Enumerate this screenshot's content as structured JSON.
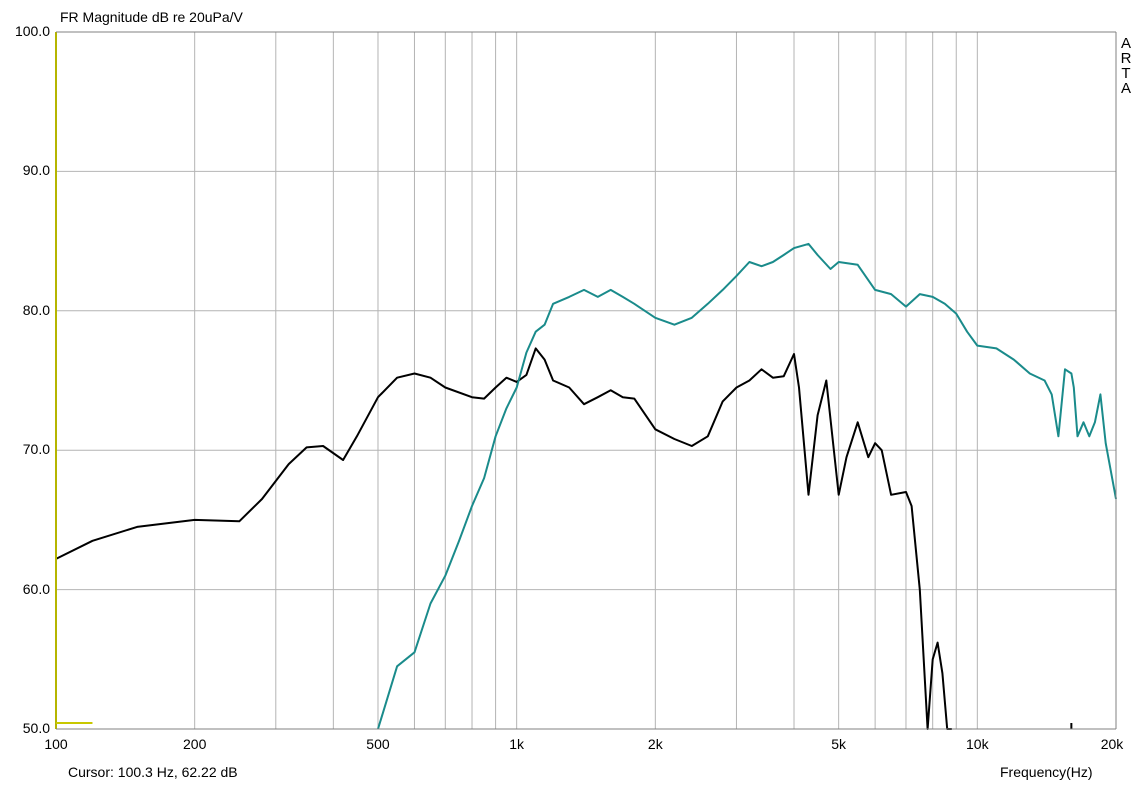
{
  "app": {
    "brand_letters": [
      "A",
      "R",
      "T",
      "A"
    ]
  },
  "status": {
    "cursor_text": "Cursor:   100.3 Hz, 62.22 dB"
  },
  "chart_data": {
    "type": "line",
    "title": "FR Magnitude dB re 20uPa/V",
    "xlabel": "Frequency(Hz)",
    "ylabel": "",
    "xscale": "log",
    "xlim": [
      100,
      20000
    ],
    "ylim": [
      50,
      100
    ],
    "grid": true,
    "x_ticks": [
      {
        "value": 100,
        "label": "100"
      },
      {
        "value": 200,
        "label": "200"
      },
      {
        "value": 500,
        "label": "500"
      },
      {
        "value": 1000,
        "label": "1k"
      },
      {
        "value": 2000,
        "label": "2k"
      },
      {
        "value": 5000,
        "label": "5k"
      },
      {
        "value": 10000,
        "label": "10k"
      },
      {
        "value": 20000,
        "label": "20k"
      }
    ],
    "y_ticks": [
      {
        "value": 100,
        "label": "100.0"
      },
      {
        "value": 90,
        "label": "90.0"
      },
      {
        "value": 80,
        "label": "80.0"
      },
      {
        "value": 70,
        "label": "70.0"
      },
      {
        "value": 60,
        "label": "60.0"
      },
      {
        "value": 50,
        "label": "50.0"
      }
    ],
    "colors": {
      "axis_left": "#b5b500",
      "grid": "#b4b4b4",
      "black_series": "#000000",
      "teal_series": "#1a8b8b",
      "cursor_marker": "#c8c800"
    },
    "series": [
      {
        "color": "#000000",
        "x": [
          100,
          120,
          150,
          200,
          250,
          280,
          320,
          350,
          380,
          420,
          450,
          500,
          550,
          600,
          650,
          700,
          800,
          850,
          900,
          950,
          1000,
          1050,
          1100,
          1150,
          1200,
          1300,
          1400,
          1500,
          1600,
          1700,
          1800,
          2000,
          2200,
          2400,
          2600,
          2800,
          3000,
          3200,
          3400,
          3600,
          3800,
          4000,
          4100,
          4300,
          4500,
          4700,
          5000,
          5200,
          5500,
          5800,
          6000,
          6200,
          6500,
          7000,
          7200,
          7500,
          7800,
          8000,
          8200,
          8400,
          8600,
          8800
        ],
        "values": [
          62.2,
          63.5,
          64.5,
          65.0,
          64.9,
          66.5,
          69.0,
          70.2,
          70.3,
          69.3,
          71.0,
          73.8,
          75.2,
          75.5,
          75.2,
          74.5,
          73.8,
          73.7,
          74.5,
          75.2,
          74.9,
          75.4,
          77.3,
          76.5,
          75.0,
          74.5,
          73.3,
          73.8,
          74.3,
          73.8,
          73.7,
          71.5,
          70.8,
          70.3,
          71.0,
          73.5,
          74.5,
          75.0,
          75.8,
          75.2,
          75.3,
          76.9,
          74.5,
          66.8,
          72.5,
          75.0,
          66.8,
          69.5,
          72.0,
          69.5,
          70.5,
          70.0,
          66.8,
          67.0,
          66.0,
          60.0,
          50.0,
          55.0,
          56.2,
          54.0,
          50.0,
          50.0
        ]
      },
      {
        "color": "#1a8b8b",
        "x": [
          500,
          550,
          600,
          650,
          700,
          750,
          800,
          850,
          900,
          950,
          1000,
          1050,
          1100,
          1150,
          1200,
          1300,
          1400,
          1500,
          1600,
          1700,
          1800,
          2000,
          2200,
          2400,
          2600,
          2800,
          3000,
          3200,
          3400,
          3600,
          3800,
          4000,
          4300,
          4500,
          4800,
          5000,
          5500,
          6000,
          6500,
          7000,
          7500,
          8000,
          8500,
          9000,
          9500,
          10000,
          11000,
          12000,
          13000,
          14000,
          14500,
          15000,
          15500,
          16000,
          16200,
          16500,
          17000,
          17500,
          18000,
          18500,
          19000,
          20000
        ],
        "values": [
          50.0,
          54.5,
          55.5,
          59.0,
          61.0,
          63.5,
          66.0,
          68.0,
          71.0,
          73.0,
          74.5,
          77.0,
          78.5,
          79.0,
          80.5,
          81.0,
          81.5,
          81.0,
          81.5,
          81.0,
          80.5,
          79.5,
          79.0,
          79.5,
          80.5,
          81.5,
          82.5,
          83.5,
          83.2,
          83.5,
          84.0,
          84.5,
          84.8,
          84.0,
          83.0,
          83.5,
          83.3,
          81.5,
          81.2,
          80.3,
          81.2,
          81.0,
          80.5,
          79.8,
          78.5,
          77.5,
          77.3,
          76.5,
          75.5,
          75.0,
          74.0,
          71.0,
          75.8,
          75.5,
          74.5,
          71.0,
          72.0,
          71.0,
          72.0,
          74.0,
          70.5,
          66.5
        ]
      }
    ]
  }
}
